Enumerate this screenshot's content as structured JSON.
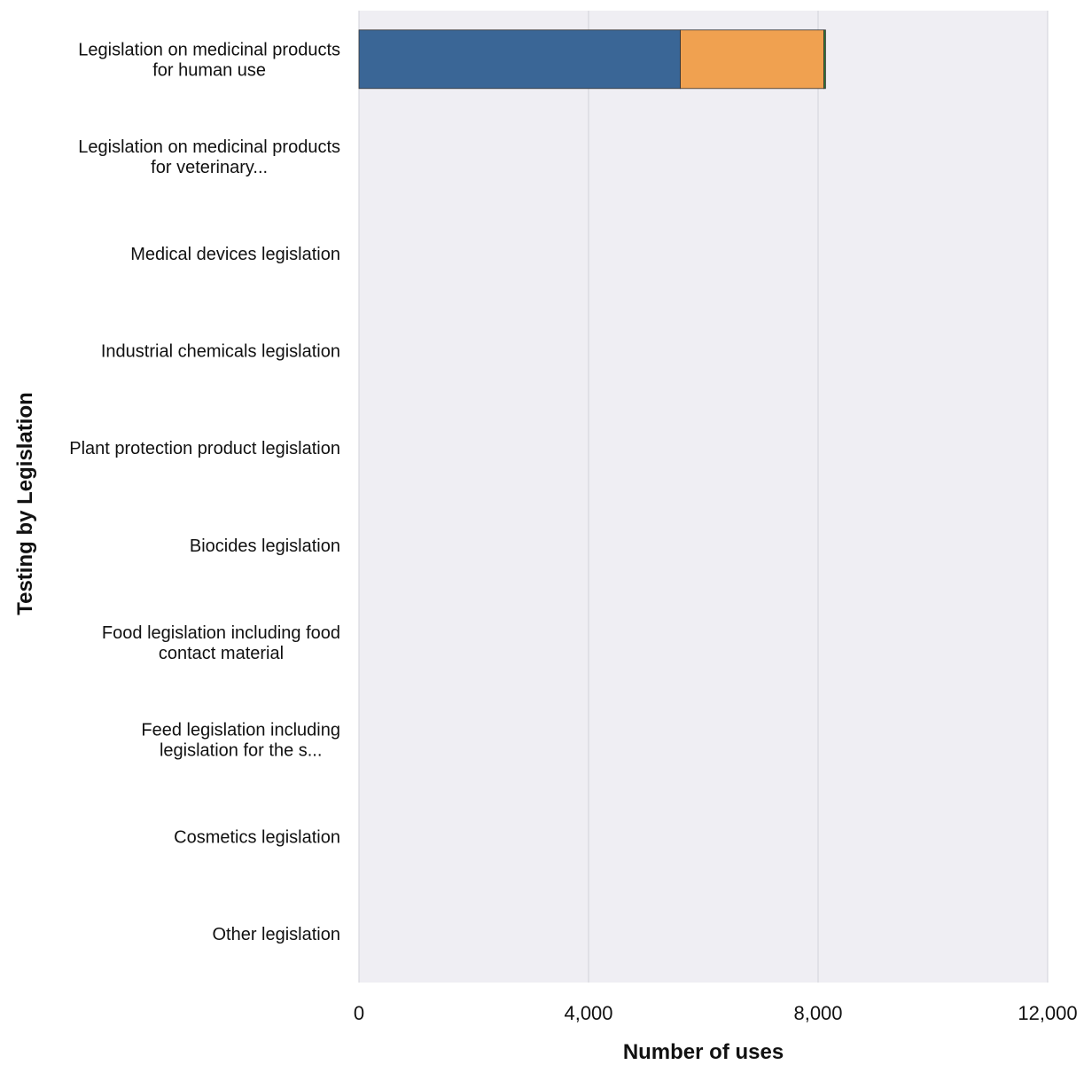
{
  "chart_data": {
    "type": "bar",
    "orientation": "horizontal",
    "stacked": true,
    "categories": [
      [
        "Legislation on medicinal products",
        "for human use"
      ],
      [
        "Legislation on medicinal products",
        "for veterinary..."
      ],
      [
        "Medical devices legislation"
      ],
      [
        "Industrial chemicals legislation"
      ],
      [
        "Plant protection product legislation"
      ],
      [
        "Biocides legislation"
      ],
      [
        "Food legislation including food",
        "contact material"
      ],
      [
        "Feed legislation including",
        "legislation for the s..."
      ],
      [
        "Cosmetics legislation"
      ],
      [
        "Other legislation"
      ]
    ],
    "series": [
      {
        "color": "#3a6696",
        "values": [
          5600,
          0,
          0,
          0,
          0,
          0,
          0,
          0,
          0,
          0
        ]
      },
      {
        "color": "#f0a150",
        "values": [
          2500,
          0,
          0,
          0,
          0,
          0,
          0,
          0,
          0,
          0
        ]
      },
      {
        "color": "#2e7d32",
        "values": [
          30,
          0,
          0,
          0,
          0,
          0,
          0,
          0,
          0,
          0
        ]
      }
    ],
    "xlabel": "Number of uses",
    "ylabel": "Testing by Legislation",
    "xlim": [
      0,
      12000
    ],
    "xticks": [
      0,
      4000,
      8000,
      12000
    ],
    "xtick_labels": [
      "0",
      "4,000",
      "8,000",
      "12,000"
    ],
    "grid": true,
    "colors": {
      "plot_background": "#efeef3",
      "gridline": "#d2d2d8"
    }
  }
}
